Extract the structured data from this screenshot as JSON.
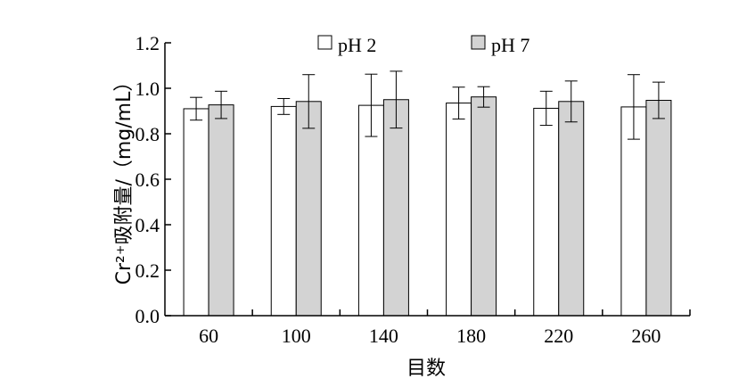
{
  "chart_data": {
    "type": "bar",
    "categories": [
      "60",
      "100",
      "140",
      "180",
      "220",
      "260"
    ],
    "series": [
      {
        "name": "pH 2",
        "color": "#ffffff",
        "values": [
          0.91,
          0.92,
          0.925,
          0.935,
          0.912,
          0.918
        ],
        "errors": [
          0.05,
          0.035,
          0.137,
          0.07,
          0.075,
          0.142
        ]
      },
      {
        "name": "pH 7",
        "color": "#d3d3d3",
        "values": [
          0.927,
          0.942,
          0.95,
          0.962,
          0.942,
          0.947
        ],
        "errors": [
          0.06,
          0.118,
          0.125,
          0.045,
          0.09,
          0.08
        ]
      }
    ],
    "yticks": [
      "0.0",
      "0.2",
      "0.4",
      "0.6",
      "0.8",
      "1.0",
      "1.2"
    ],
    "ylim": [
      0,
      1.2
    ],
    "xlabel": "目数",
    "ylabel": "Cr²⁺吸附量/（mg/mL）",
    "legend_position": "top-center",
    "grid": false
  }
}
